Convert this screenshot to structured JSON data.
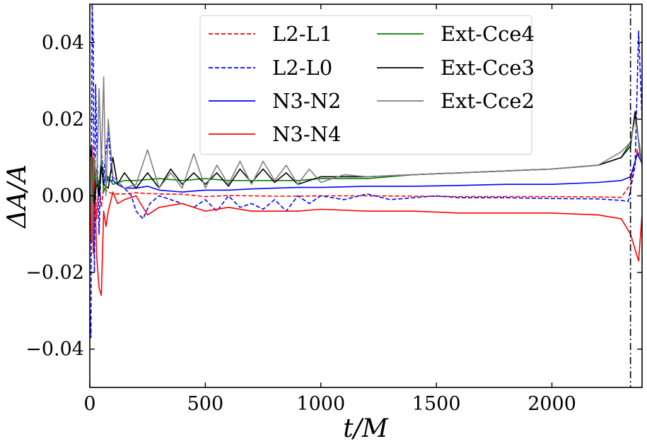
{
  "chart_data": {
    "type": "line",
    "xlabel": "t/M",
    "ylabel": "ΔA/A",
    "xlim": [
      0,
      2390
    ],
    "ylim": [
      -0.05,
      0.05
    ],
    "xticks": [
      0,
      500,
      1000,
      1500,
      2000
    ],
    "xtick_labels": [
      "0",
      "500",
      "1000",
      "1500",
      "2000"
    ],
    "yticks": [
      -0.04,
      -0.02,
      0.0,
      0.02,
      0.04
    ],
    "ytick_labels": [
      "−0.04",
      "−0.02",
      "0.00",
      "0.02",
      "0.04"
    ],
    "vline": {
      "x": 2340,
      "style": "dashdot",
      "color": "#000000"
    },
    "legend": {
      "placement": "top-center",
      "ncol": 2
    },
    "series": [
      {
        "name": "L2-L1",
        "color": "#ff0000",
        "style": "dashed",
        "x": [
          0,
          5,
          10,
          15,
          20,
          30,
          40,
          50,
          60,
          80,
          100,
          150,
          200,
          250,
          300,
          400,
          500,
          600,
          700,
          800,
          900,
          1000,
          1200,
          1400,
          1600,
          1800,
          2000,
          2200,
          2300,
          2340,
          2370,
          2390
        ],
        "y": [
          0.008,
          -0.012,
          0.013,
          -0.015,
          0.009,
          -0.006,
          0.004,
          -0.003,
          0.002,
          0.001,
          0.0005,
          0.0005,
          0.0008,
          0.0006,
          0.0005,
          0.0004,
          -0.0002,
          0.0001,
          0.0,
          -0.0001,
          -0.0001,
          0.0,
          0.0,
          -0.0001,
          -0.0002,
          -0.0002,
          -0.0002,
          -0.0003,
          -0.0004,
          0.003,
          0.012,
          0.008
        ]
      },
      {
        "name": "L2-L0",
        "color": "#0000ff",
        "style": "dashed",
        "x": [
          0,
          5,
          10,
          15,
          20,
          25,
          30,
          40,
          50,
          60,
          70,
          80,
          90,
          100,
          120,
          150,
          180,
          200,
          230,
          260,
          300,
          350,
          400,
          450,
          500,
          550,
          600,
          650,
          700,
          750,
          800,
          850,
          900,
          950,
          1000,
          1100,
          1200,
          1300,
          1400,
          1500,
          1600,
          1800,
          2000,
          2200,
          2300,
          2330,
          2360,
          2375,
          2390
        ],
        "y": [
          -0.03,
          -0.037,
          0.05,
          0.04,
          -0.02,
          0.029,
          0.015,
          -0.01,
          0.012,
          0.005,
          0.012,
          0.017,
          0.009,
          0.004,
          0.003,
          0.002,
          0.0,
          -0.004,
          -0.006,
          -0.002,
          0.0,
          -0.001,
          -0.002,
          -0.003,
          -0.001,
          -0.004,
          0.0,
          -0.003,
          -0.002,
          -0.0035,
          -0.001,
          -0.004,
          0.0,
          -0.002,
          0.0,
          -0.001,
          0.0005,
          -0.001,
          -0.0005,
          0.0,
          -0.0005,
          -0.0005,
          -0.0007,
          -0.0008,
          -0.0012,
          -0.0015,
          0.008,
          0.043,
          0.02
        ]
      },
      {
        "name": "N3-N2",
        "color": "#0000ff",
        "style": "solid",
        "x": [
          0,
          10,
          20,
          30,
          40,
          50,
          60,
          70,
          80,
          100,
          120,
          150,
          200,
          250,
          300,
          400,
          500,
          600,
          700,
          800,
          900,
          1000,
          1200,
          1400,
          1600,
          1800,
          2000,
          2200,
          2300,
          2340,
          2370,
          2390
        ],
        "y": [
          -0.005,
          0.004,
          -0.003,
          0.007,
          0.0,
          0.008,
          0.003,
          0.006,
          0.004,
          0.004,
          0.003,
          0.002,
          0.002,
          0.0025,
          0.0015,
          0.001,
          0.0015,
          0.0015,
          0.0018,
          0.002,
          0.0022,
          0.0022,
          0.0025,
          0.0025,
          0.0027,
          0.003,
          0.003,
          0.0035,
          0.004,
          0.005,
          0.011,
          0.0085
        ]
      },
      {
        "name": "N3-N4",
        "color": "#ff0000",
        "style": "solid",
        "x": [
          0,
          5,
          10,
          15,
          20,
          30,
          40,
          50,
          60,
          70,
          80,
          100,
          120,
          150,
          200,
          250,
          300,
          400,
          500,
          600,
          700,
          800,
          900,
          1000,
          1200,
          1400,
          1600,
          1800,
          2000,
          2200,
          2300,
          2340,
          2360,
          2375,
          2390
        ],
        "y": [
          0.008,
          -0.01,
          0.01,
          -0.015,
          0.006,
          -0.016,
          -0.024,
          -0.026,
          -0.004,
          -0.008,
          -0.004,
          0.001,
          -0.002,
          -0.001,
          0.0,
          -0.005,
          -0.003,
          -0.002,
          -0.004,
          -0.003,
          -0.004,
          -0.004,
          -0.004,
          -0.0035,
          -0.004,
          -0.004,
          -0.0045,
          -0.0045,
          -0.0045,
          -0.005,
          -0.006,
          -0.01,
          -0.014,
          -0.017,
          -0.005
        ]
      },
      {
        "name": "Ext-Cce4",
        "color": "#008000",
        "style": "solid",
        "x": [
          0,
          5,
          10,
          15,
          20,
          30,
          40,
          50,
          60,
          80,
          100,
          150,
          200,
          300,
          400,
          500,
          600,
          700,
          800,
          900,
          1000,
          1200,
          1400,
          1600,
          1800,
          2000,
          2100,
          2200,
          2300,
          2340,
          2360,
          2380,
          2390
        ],
        "y": [
          -0.005,
          0.013,
          -0.008,
          0.01,
          0.004,
          0.006,
          0.002,
          0.01,
          0.001,
          0.005,
          0.003,
          0.004,
          0.004,
          0.0045,
          0.004,
          0.0045,
          0.004,
          0.004,
          0.004,
          0.004,
          0.0045,
          0.0045,
          0.0055,
          0.006,
          0.0065,
          0.007,
          0.0075,
          0.008,
          0.01,
          0.014,
          0.021,
          0.012,
          0.008
        ]
      },
      {
        "name": "Ext-Cce3",
        "color": "#000000",
        "style": "solid",
        "x": [
          0,
          5,
          10,
          15,
          20,
          30,
          40,
          50,
          60,
          80,
          100,
          120,
          150,
          200,
          250,
          300,
          350,
          400,
          450,
          500,
          550,
          600,
          650,
          700,
          750,
          800,
          850,
          900,
          1000,
          1200,
          1400,
          1600,
          1800,
          2000,
          2100,
          2200,
          2300,
          2340,
          2360,
          2380,
          2390
        ],
        "y": [
          -0.005,
          0.012,
          -0.01,
          0.005,
          -0.002,
          0.004,
          0.0,
          0.008,
          0.003,
          0.002,
          0.01,
          0.003,
          0.006,
          0.002,
          0.006,
          0.002,
          0.007,
          0.003,
          0.006,
          0.003,
          0.006,
          0.0025,
          0.007,
          0.0035,
          0.007,
          0.0035,
          0.006,
          0.003,
          0.005,
          0.005,
          0.0055,
          0.006,
          0.0065,
          0.007,
          0.0075,
          0.008,
          0.01,
          0.013,
          0.022,
          0.012,
          0.008
        ]
      },
      {
        "name": "Ext-Cce2",
        "color": "#808080",
        "style": "solid",
        "x": [
          0,
          5,
          10,
          15,
          20,
          30,
          40,
          50,
          60,
          70,
          80,
          100,
          150,
          200,
          250,
          300,
          350,
          400,
          450,
          500,
          550,
          600,
          650,
          700,
          750,
          800,
          850,
          900,
          950,
          1000,
          1100,
          1200,
          1400,
          1600,
          1800,
          2000,
          2100,
          2200,
          2300,
          2340,
          2360,
          2380,
          2390
        ],
        "y": [
          -0.005,
          0.01,
          -0.012,
          0.005,
          0.01,
          0.003,
          0.028,
          0.008,
          0.031,
          0.0,
          0.02,
          0.005,
          0.002,
          0.003,
          0.012,
          0.002,
          0.006,
          0.002,
          0.011,
          0.002,
          0.008,
          0.003,
          0.009,
          0.003,
          0.009,
          0.004,
          0.008,
          0.003,
          0.007,
          0.0035,
          0.0055,
          0.005,
          0.0055,
          0.006,
          0.0065,
          0.007,
          0.0075,
          0.008,
          0.0115,
          0.014,
          0.02,
          0.013,
          0.008
        ]
      }
    ]
  }
}
